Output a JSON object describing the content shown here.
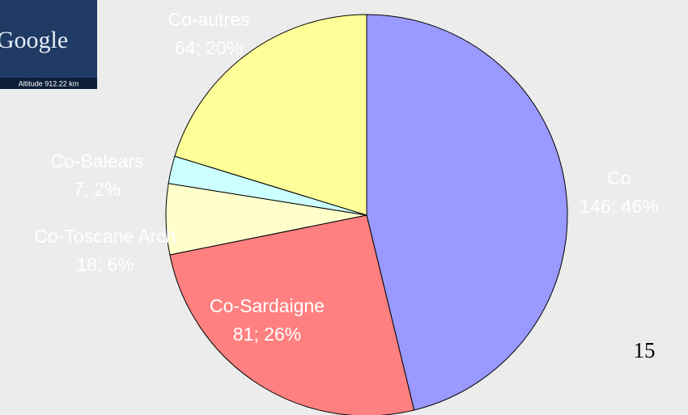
{
  "chart_data": {
    "type": "pie",
    "categories": [
      "Co",
      "Co-Sardaigne",
      "Co-Toscane Arch",
      "Co-Balears",
      "Co-autres"
    ],
    "values": [
      146,
      81,
      18,
      7,
      64
    ],
    "value_labels": [
      "146; 46%",
      "81; 26%",
      "18; 6%",
      "7; 2%",
      "64; 20%"
    ],
    "colors": [
      "#9999ff",
      "#ff8080",
      "#ffffcc",
      "#ccffff",
      "#ffff99"
    ]
  },
  "logo": {
    "text": "Google",
    "altitude": "Altitude   912.22 km"
  },
  "page_number": "15"
}
